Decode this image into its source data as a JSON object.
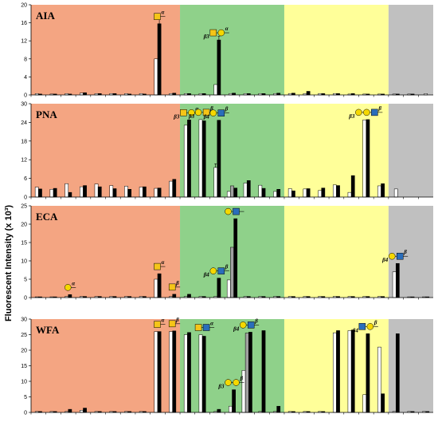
{
  "y_axis_label": "Fluorescent Intensity (x 10³)",
  "colors": {
    "orange": "#f4a582",
    "green": "#8fd18a",
    "yellow": "#ffff99",
    "gray": "#c0c0c0",
    "bar_white": "#ffffff",
    "bar_black": "#000000",
    "bar_gray": "#a0a0a0",
    "glycan_galnac": "#f5c518",
    "glycan_gal": "#f5d800",
    "glycan_glcnac": "#2a6ebb"
  },
  "region_groups": [
    {
      "name": "orange",
      "from": 0,
      "to": 10
    },
    {
      "name": "green",
      "from": 10,
      "to": 17
    },
    {
      "name": "yellow",
      "from": 17,
      "to": 24
    },
    {
      "name": "gray",
      "from": 24,
      "to": 27
    }
  ],
  "chart_data": [
    {
      "type": "bar",
      "title": "AIA",
      "ylim": [
        0,
        20
      ],
      "yticks": [
        0,
        4,
        8,
        12,
        16,
        20
      ],
      "n_groups": 27,
      "series": [
        {
          "name": "",
          "values": [
            0.3,
            0.2,
            0.3,
            0.4,
            0.3,
            0.3,
            0.3,
            0.3,
            8.0,
            0.3,
            0.3,
            0.3,
            2.3,
            0.3,
            0.3,
            0.3,
            0.3,
            0.3,
            0.3,
            0.3,
            0.3,
            0.2,
            0.2,
            0.2,
            0.2,
            0.2,
            0.3
          ]
        },
        {
          "name": "",
          "values": [
            0.2,
            0.2,
            0.2,
            0.5,
            0.3,
            0.3,
            0.2,
            0.2,
            15.8,
            0.4,
            0.3,
            0.3,
            12.2,
            0.4,
            0.3,
            0.3,
            0.4,
            0.4,
            0.8,
            0.3,
            0.3,
            0.3,
            0.2,
            0.2,
            0.2,
            0.2,
            0.0
          ]
        }
      ],
      "errors": [
        {
          "group": 8,
          "series": 1,
          "err": 1.2
        },
        {
          "group": 12,
          "series": 1,
          "err": 0.8
        }
      ]
    },
    {
      "type": "bar",
      "title": "PNA",
      "ylim": [
        0,
        30
      ],
      "yticks": [
        0,
        6,
        12,
        18,
        24,
        30
      ],
      "n_groups": 27,
      "series": [
        {
          "name": "",
          "values": [
            3.2,
            2.5,
            4.3,
            3.3,
            4.2,
            3.7,
            3.5,
            3.2,
            2.8,
            5.1,
            23.1,
            24.9,
            9.5,
            1.8,
            4.5,
            3.8,
            1.8,
            2.7,
            2.6,
            2.1,
            3.9,
            1.5,
            24.8,
            3.6,
            2.6,
            0,
            0
          ]
        },
        {
          "name": "",
          "values": [
            2.6,
            2.8,
            1.5,
            3.7,
            3.3,
            2.7,
            2.5,
            3.3,
            2.9,
            5.7,
            24.8,
            24.5,
            24.7,
            2.9,
            5.3,
            2.8,
            2.5,
            2.0,
            2.7,
            2.9,
            3.7,
            6.9,
            24.9,
            4.3,
            0,
            0,
            0
          ]
        },
        {
          "name": "",
          "values": [
            0,
            0,
            0,
            0,
            0,
            0,
            0,
            0,
            0,
            0,
            0,
            0,
            0,
            3.6,
            0,
            0,
            0,
            0,
            0,
            0,
            0,
            0,
            0,
            0,
            0,
            0,
            0
          ]
        }
      ],
      "errors": [
        {
          "group": 12,
          "series": 0,
          "err": 1.2
        }
      ]
    },
    {
      "type": "bar",
      "title": "ECA",
      "ylim": [
        0,
        25
      ],
      "yticks": [
        0,
        5,
        10,
        15,
        20,
        25
      ],
      "n_groups": 27,
      "series": [
        {
          "name": "",
          "values": [
            0.2,
            0.2,
            0.3,
            0.3,
            0.3,
            0.3,
            0.3,
            0.3,
            5.0,
            0.3,
            0.3,
            0.3,
            0.3,
            4.8,
            0.3,
            0.3,
            0.3,
            0.3,
            0.3,
            0.3,
            0.3,
            0.3,
            0.3,
            0.3,
            7.0,
            0.2,
            0.2
          ]
        },
        {
          "name": "",
          "values": [
            0.2,
            0.2,
            0.8,
            0.3,
            0.3,
            0.3,
            0.3,
            0.3,
            6.5,
            0.9,
            0.9,
            0.3,
            5.3,
            21.5,
            0.3,
            0.3,
            0.3,
            0.3,
            0.3,
            0.3,
            0.3,
            0.3,
            0.3,
            0.3,
            9.3,
            0.2,
            0.2
          ]
        },
        {
          "name": "",
          "values": [
            0,
            0,
            0,
            0,
            0,
            0,
            0,
            0,
            0,
            0,
            0,
            0,
            0,
            13.7,
            0,
            0,
            0,
            0,
            0,
            0,
            0,
            0,
            0,
            0,
            0,
            0,
            0
          ]
        }
      ],
      "errors": []
    },
    {
      "type": "bar",
      "title": "WFA",
      "ylim": [
        0,
        30
      ],
      "yticks": [
        0,
        5,
        10,
        15,
        20,
        25,
        30
      ],
      "n_groups": 27,
      "series": [
        {
          "name": "",
          "values": [
            0.3,
            0.3,
            0.3,
            0.7,
            0.3,
            0.3,
            0.3,
            0.3,
            26.0,
            26.0,
            25.0,
            25.0,
            0.3,
            2.0,
            13.5,
            0.3,
            0.3,
            0.3,
            0.3,
            0.3,
            25.6,
            26.3,
            5.7,
            21.0,
            0.3,
            0.3,
            0.3
          ]
        },
        {
          "name": "",
          "values": [
            0.3,
            0.3,
            1.0,
            1.4,
            0.3,
            0.3,
            0.3,
            0.3,
            26.0,
            26.2,
            25.7,
            24.5,
            1.0,
            7.3,
            25.8,
            26.3,
            2.0,
            0.3,
            0.3,
            0.3,
            26.3,
            26.5,
            25.3,
            6.0,
            25.3,
            0.3,
            0.3
          ]
        },
        {
          "name": "",
          "values": [
            0,
            0,
            0,
            0,
            0,
            0,
            0,
            0,
            0,
            0,
            0,
            0,
            0,
            0,
            25.5,
            0,
            0,
            0,
            0,
            0,
            0,
            0,
            0,
            0,
            0,
            0,
            0
          ]
        }
      ],
      "errors": []
    }
  ],
  "glycan_labels": [
    {
      "panel": 0,
      "group": 8,
      "text": "α",
      "shapes": [
        "square"
      ]
    },
    {
      "panel": 0,
      "group": 12,
      "text": "α",
      "shapes": [
        "square",
        "circle"
      ],
      "link": "β3"
    },
    {
      "panel": 1,
      "group": 10,
      "text": "α",
      "shapes": [
        "square",
        "circle"
      ],
      "link": "β3"
    },
    {
      "panel": 1,
      "group": 11,
      "text": "β",
      "shapes": [
        "circle",
        "square"
      ],
      "link": "β3"
    },
    {
      "panel": 1,
      "group": 12,
      "text": "β",
      "shapes": [
        "circle",
        "sqblue"
      ],
      "link": "β4"
    },
    {
      "panel": 1,
      "group": 22,
      "text": "β",
      "shapes": [
        "circle",
        "circle",
        "sqblue"
      ],
      "link": "β3"
    },
    {
      "panel": 2,
      "group": 2,
      "text": "α",
      "shapes": [
        "circle"
      ]
    },
    {
      "panel": 2,
      "group": 8,
      "text": "α",
      "shapes": [
        "square"
      ]
    },
    {
      "panel": 2,
      "group": 9,
      "text": "β",
      "shapes": [
        "square"
      ]
    },
    {
      "panel": 2,
      "group": 12,
      "text": "β",
      "shapes": [
        "circle",
        "sqblue"
      ],
      "link": "β4"
    },
    {
      "panel": 2,
      "group": 13,
      "text": "",
      "shapes": [
        "circle",
        "sqblue"
      ]
    },
    {
      "panel": 2,
      "group": 24,
      "text": "β",
      "shapes": [
        "circle",
        "sqblue"
      ],
      "link": "β4"
    },
    {
      "panel": 3,
      "group": 8,
      "text": "α",
      "shapes": [
        "square"
      ]
    },
    {
      "panel": 3,
      "group": 9,
      "text": "β",
      "shapes": [
        "square"
      ]
    },
    {
      "panel": 3,
      "group": 11,
      "text": "α",
      "shapes": [
        "square",
        "sqblue"
      ]
    },
    {
      "panel": 3,
      "group": 13,
      "text": "β",
      "shapes": [
        "circle",
        "circle"
      ],
      "link": "β3"
    },
    {
      "panel": 3,
      "group": 14,
      "text": "β",
      "shapes": [
        "circle",
        "sqblue"
      ],
      "link": "β4"
    },
    {
      "panel": 3,
      "group": 22,
      "text": "β",
      "shapes": [
        "sqblue",
        "circle"
      ],
      "link": "β4"
    }
  ]
}
